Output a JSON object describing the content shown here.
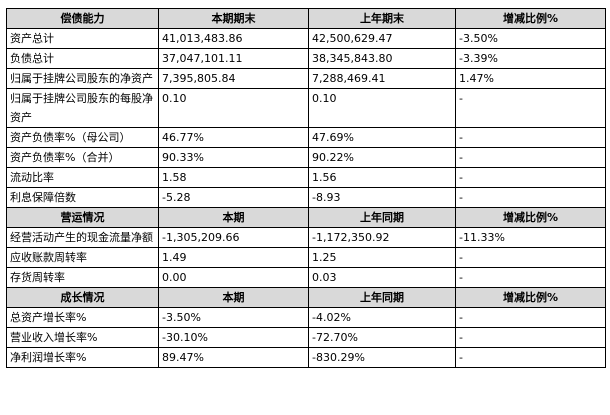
{
  "sections": [
    {
      "header": [
        "偿债能力",
        "本期期末",
        "上年期末",
        "增减比例%"
      ],
      "rows": [
        [
          "资产总计",
          "41,013,483.86",
          "42,500,629.47",
          "-3.50%"
        ],
        [
          "负债总计",
          "37,047,101.11",
          "38,345,843.80",
          "-3.39%"
        ],
        [
          "归属于挂牌公司股东的净资产",
          "7,395,805.84",
          "7,288,469.41",
          "1.47%"
        ],
        [
          "归属于挂牌公司股东的每股净资产",
          "0.10",
          "0.10",
          "-"
        ],
        [
          "资产负债率%（母公司）",
          "46.77%",
          "47.69%",
          "-"
        ],
        [
          "资产负债率%（合并）",
          "90.33%",
          "90.22%",
          "-"
        ],
        [
          "流动比率",
          "1.58",
          "1.56",
          "-"
        ],
        [
          "利息保障倍数",
          "-5.28",
          "-8.93",
          "-"
        ]
      ]
    },
    {
      "header": [
        "营运情况",
        "本期",
        "上年同期",
        "增减比例%"
      ],
      "rows": [
        [
          "经营活动产生的现金流量净额",
          "-1,305,209.66",
          "-1,172,350.92",
          "-11.33%"
        ],
        [
          "应收账款周转率",
          "1.49",
          "1.25",
          "-"
        ],
        [
          "存货周转率",
          "0.00",
          "0.03",
          "-"
        ]
      ]
    },
    {
      "header": [
        "成长情况",
        "本期",
        "上年同期",
        "增减比例%"
      ],
      "rows": [
        [
          "总资产增长率%",
          "-3.50%",
          "-4.02%",
          "-"
        ],
        [
          "营业收入增长率%",
          "-30.10%",
          "-72.70%",
          "-"
        ],
        [
          "净利润增长率%",
          "89.47%",
          "-830.29%",
          "-"
        ]
      ]
    }
  ]
}
